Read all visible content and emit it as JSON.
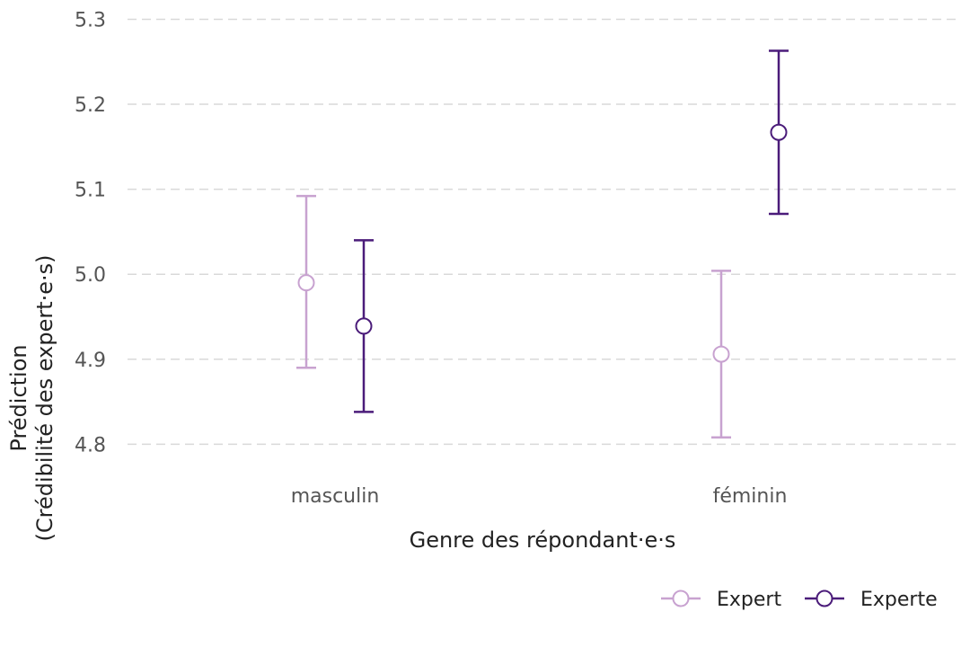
{
  "chart_data": {
    "type": "scatter",
    "subtype": "point-errorbar",
    "xlabel": "Genre des répondant·e·s",
    "ylabel_lines": [
      "Prédiction",
      "(Crédibilité des expert·e·s)"
    ],
    "categories": [
      "masculin",
      "féminin"
    ],
    "ylim": [
      4.775,
      5.31
    ],
    "yticks": [
      "4.8",
      "4.9",
      "5.0",
      "5.1",
      "5.2",
      "5.3"
    ],
    "grid": "horizontal, dashed",
    "legend_position": "bottom-right",
    "series": [
      {
        "name": "Expert",
        "color": "#c8a2d0",
        "points": [
          {
            "category": "masculin",
            "value": 4.99,
            "lower": 4.89,
            "upper": 5.092
          },
          {
            "category": "féminin",
            "value": 4.906,
            "lower": 4.808,
            "upper": 5.004
          }
        ]
      },
      {
        "name": "Experte",
        "color": "#4b1c7a",
        "points": [
          {
            "category": "masculin",
            "value": 4.939,
            "lower": 4.838,
            "upper": 5.04
          },
          {
            "category": "féminin",
            "value": 5.167,
            "lower": 5.071,
            "upper": 5.263
          }
        ]
      }
    ]
  }
}
